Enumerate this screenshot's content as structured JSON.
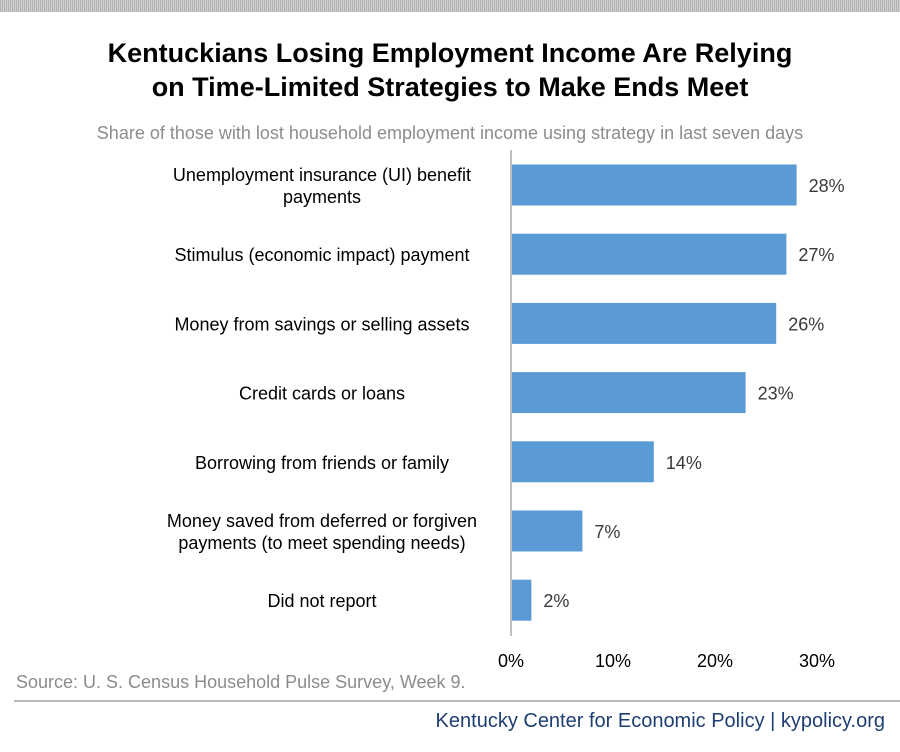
{
  "chart_data": {
    "type": "bar",
    "orientation": "horizontal",
    "title": "Kentuckians Losing Employment Income Are Relying on Time-Limited Strategies to Make Ends Meet",
    "title_lines": [
      "Kentuckians Losing Employment Income Are Relying",
      "on Time-Limited Strategies to Make Ends Meet"
    ],
    "subtitle": "Share of those with lost household employment income using strategy in last seven days",
    "categories": [
      [
        "Unemployment insurance (UI) benefit",
        "payments"
      ],
      [
        "Stimulus (economic impact) payment"
      ],
      [
        "Money from savings or selling assets"
      ],
      [
        "Credit cards or loans"
      ],
      [
        "Borrowing from friends or family"
      ],
      [
        "Money saved from deferred or forgiven",
        "payments (to meet spending needs)"
      ],
      [
        "Did not report"
      ]
    ],
    "values": [
      28,
      27,
      26,
      23,
      14,
      7,
      2
    ],
    "value_labels": [
      "28%",
      "27%",
      "26%",
      "23%",
      "14%",
      "7%",
      "2%"
    ],
    "xlim": [
      0,
      30
    ],
    "xticks": [
      0,
      10,
      20,
      30
    ],
    "xtick_labels": [
      "0%",
      "10%",
      "20%",
      "30%"
    ],
    "bar_color": "#5b9bd5",
    "grid": false,
    "legend": "none"
  },
  "source": "Source: U. S. Census Household Pulse Survey, Week 9.",
  "footer": "Kentucky Center for Economic Policy | kypolicy.org",
  "colors": {
    "title": "#000000",
    "subtitle": "#8c8c8c",
    "footer": "#1f3f73",
    "axis": "#bfbfbf",
    "text": "#3a3a3a"
  }
}
